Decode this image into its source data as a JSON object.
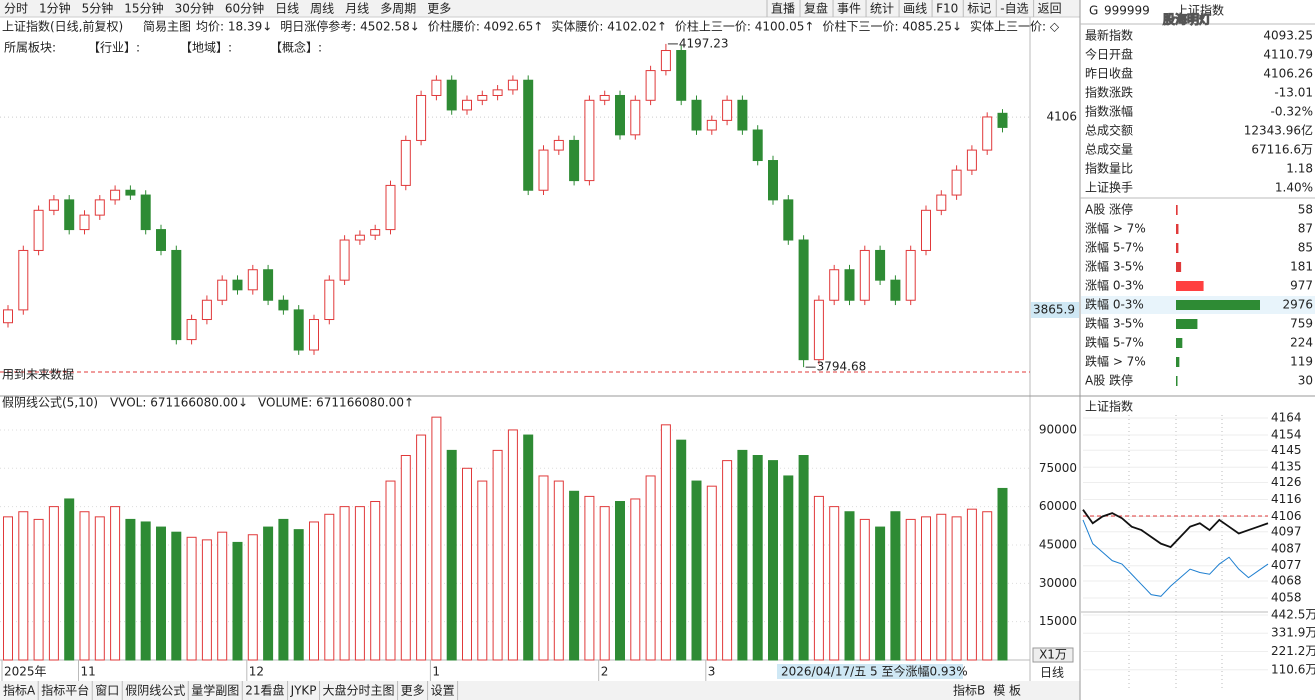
{
  "toolbar": {
    "left": [
      "分时",
      "1分钟",
      "5分钟",
      "15分钟",
      "30分钟",
      "60分钟",
      "日线",
      "周线",
      "月线",
      "多周期",
      "更多"
    ],
    "active": "日线",
    "right": [
      "直播",
      "复盘",
      "事件",
      "统计",
      "画线",
      "F10",
      "标记",
      "-自选",
      "返回"
    ]
  },
  "header": {
    "mode": "简易主图",
    "items": [
      "均价: 18.39↓",
      "明日涨停参考: 4502.58↓",
      "价柱腰价: 4092.65↑",
      "实体腰价: 4102.02↑",
      "价柱上三一价: 4100.05↑",
      "价柱下三一价: 4085.25↓",
      "实体上三一价: ◇"
    ]
  },
  "sector_line": [
    "所属板块:",
    "【行业】:",
    "【地域】:",
    "【概念】:"
  ],
  "future_note": "用到未来数据",
  "date_status": "2026/04/17/五 5 至今涨幅0.93%",
  "chart_data": [
    {
      "type": "candlestick",
      "title": "上证指数(日线,前复权)",
      "categories": [
        "2025年",
        null,
        null,
        null,
        null,
        "11",
        null,
        null,
        null,
        null,
        null,
        null,
        null,
        null,
        null,
        null,
        "12",
        null,
        null,
        null,
        null,
        null,
        null,
        null,
        null,
        null,
        null,
        null,
        "1",
        null,
        null,
        null,
        null,
        null,
        null,
        null,
        null,
        null,
        null,
        "2",
        null,
        null,
        null,
        null,
        null,
        null,
        "3",
        null,
        null,
        null,
        null,
        null,
        null,
        null,
        null,
        null,
        null,
        null,
        null,
        null,
        null,
        null,
        null,
        null,
        null,
        null
      ],
      "open": [
        3850,
        3866,
        3940,
        3990,
        4003,
        3966,
        3984,
        4003,
        4015,
        4009,
        3966,
        3940,
        3829,
        3854,
        3878,
        3903,
        3891,
        3916,
        3878,
        3866,
        3816,
        3854,
        3903,
        3953,
        3959,
        3966,
        4021,
        4077,
        4133,
        4152,
        4115,
        4127,
        4133,
        4140,
        4152,
        4015,
        4065,
        4077,
        4027,
        4127,
        4133,
        4084,
        4127,
        4164,
        4189,
        4127,
        4090,
        4102,
        4127,
        4090,
        4052,
        4003,
        3953,
        3804,
        3878,
        3916,
        3878,
        3940,
        3903,
        3878,
        3940,
        3990,
        4009,
        4040,
        4065,
        4110.79
      ],
      "high": [
        3872,
        3946,
        3996,
        4009,
        4009,
        3990,
        4009,
        4021,
        4021,
        4015,
        3972,
        3946,
        3860,
        3884,
        3909,
        3909,
        3922,
        3922,
        3884,
        3872,
        3860,
        3909,
        3959,
        3965,
        3972,
        4027,
        4083,
        4139,
        4158,
        4158,
        4133,
        4139,
        4146,
        4158,
        4158,
        4071,
        4083,
        4083,
        4133,
        4139,
        4139,
        4133,
        4170,
        4197.23,
        4195,
        4133,
        4108,
        4133,
        4133,
        4096,
        4058,
        4009,
        3959,
        3884,
        3922,
        3922,
        3946,
        3946,
        3909,
        3946,
        3996,
        4015,
        4046,
        4071,
        4112,
        4116
      ],
      "low": [
        3844,
        3860,
        3934,
        3984,
        3960,
        3960,
        3978,
        3997,
        4003,
        3960,
        3934,
        3823,
        3823,
        3848,
        3872,
        3885,
        3885,
        3872,
        3860,
        3810,
        3810,
        3848,
        3897,
        3947,
        3953,
        3960,
        4015,
        4071,
        4127,
        4109,
        4109,
        4121,
        4127,
        4134,
        4009,
        4009,
        4059,
        4021,
        4021,
        4121,
        4078,
        4078,
        4121,
        4158,
        4121,
        4084,
        4084,
        4096,
        4084,
        4046,
        3997,
        3947,
        3794.68,
        3798,
        3872,
        3872,
        3872,
        3897,
        3872,
        3872,
        3934,
        3984,
        4003,
        4034,
        4059,
        4087
      ],
      "close": [
        3866,
        3940,
        3990,
        4003,
        3966,
        3984,
        4003,
        4015,
        4009,
        3966,
        3940,
        3829,
        3854,
        3878,
        3903,
        3891,
        3916,
        3878,
        3866,
        3816,
        3854,
        3903,
        3953,
        3959,
        3966,
        4021,
        4077,
        4133,
        4152,
        4115,
        4127,
        4133,
        4140,
        4152,
        4015,
        4065,
        4077,
        4027,
        4127,
        4133,
        4084,
        4127,
        4164,
        4189,
        4127,
        4090,
        4102,
        4127,
        4090,
        4052,
        4003,
        3953,
        3804,
        3878,
        3916,
        3878,
        3940,
        3903,
        3878,
        3940,
        3990,
        4009,
        4040,
        4065,
        4106.26,
        4093.25
      ],
      "ylim": [
        3760,
        4227
      ],
      "yticks": [
        4106
      ],
      "cursor_value": 3865.9,
      "annotations": [
        4197.23,
        3794.68
      ],
      "up_color": "#e0393a",
      "down_color": "#2e8b34"
    },
    {
      "type": "bar",
      "title": "假阴线公式(5,10)",
      "indicators": [
        {
          "text": "VVOL: 671166080.00↓",
          "color": "#333333"
        },
        {
          "text": "VOLUME: 671166080.00↑",
          "color": "#1e7fd0"
        }
      ],
      "values": [
        56000,
        58000,
        55000,
        60000,
        63000,
        58000,
        56000,
        60000,
        55000,
        54000,
        52000,
        50000,
        48000,
        47000,
        50000,
        46000,
        49000,
        52000,
        55000,
        51000,
        54000,
        57000,
        60000,
        60000,
        62000,
        70000,
        80000,
        88000,
        95000,
        82000,
        75000,
        70000,
        82000,
        90000,
        88000,
        72000,
        70000,
        66000,
        64000,
        60000,
        62000,
        63000,
        72000,
        92000,
        86000,
        70000,
        68000,
        78000,
        82000,
        80000,
        78000,
        72000,
        80000,
        64000,
        60000,
        58000,
        55000,
        52000,
        58000,
        55000,
        56000,
        57000,
        56000,
        59000,
        58000,
        67116.6
      ],
      "ylim": [
        0,
        97800
      ],
      "yticks": [
        15000,
        30000,
        45000,
        60000,
        75000,
        90000
      ],
      "unit": "X1万"
    },
    {
      "type": "line",
      "title": "上证指数",
      "series": [
        {
          "color": "#111111",
          "values": [
            4110,
            4102,
            4106,
            4108,
            4105,
            4100,
            4098,
            4094,
            4090,
            4088,
            4094,
            4100,
            4102,
            4098,
            4104,
            4100,
            4096,
            4098,
            4100,
            4102
          ]
        },
        {
          "color": "#1e7fd0",
          "values": [
            4104,
            4090,
            4085,
            4080,
            4078,
            4072,
            4066,
            4060,
            4059,
            4065,
            4070,
            4075,
            4073,
            4072,
            4078,
            4082,
            4075,
            4070,
            4074,
            4078
          ]
        }
      ],
      "ylim": [
        4058,
        4164
      ],
      "yticks": [
        4164,
        4154,
        4145,
        4135,
        4126,
        4116,
        4106,
        4097,
        4087,
        4077,
        4068,
        4058
      ],
      "y2lim": [
        0,
        442.5
      ],
      "y2ticks": [
        {
          "value": 442.5,
          "label": "442.5万"
        },
        {
          "value": 331.9,
          "label": "331.9万"
        },
        {
          "value": 221.2,
          "label": "221.2万"
        },
        {
          "value": 110.6,
          "label": "110.6万"
        }
      ],
      "up_color": "#e0393a",
      "down_color": "#2e8b34"
    }
  ],
  "quote": {
    "prefix": "G",
    "code": "999999",
    "name": "上证指数",
    "watermark": "股海明灯",
    "rows": [
      {
        "label": "最新指数",
        "value": "4093.25",
        "color": "#1a9a2a"
      },
      {
        "label": "今日开盘",
        "value": "4110.79",
        "color": "#e0393a"
      },
      {
        "label": "昨日收盘",
        "value": "4106.26",
        "color": "#222222"
      },
      {
        "label": "指数涨跌",
        "value": "-13.01",
        "color": "#1a9a2a"
      },
      {
        "label": "指数涨幅",
        "value": "-0.32%",
        "color": "#1a9a2a"
      },
      {
        "label": "总成交额",
        "value": "12343.96亿",
        "color": "#222222"
      },
      {
        "label": "总成交量",
        "value": "67116.6万",
        "color": "#222222"
      },
      {
        "label": "指数量比",
        "value": "1.18",
        "color": "#e0393a"
      },
      {
        "label": "上证换手",
        "value": "1.40%",
        "color": "#222222"
      }
    ]
  },
  "breadth": [
    {
      "label": "A股 涨停",
      "value": 58,
      "color": "#e0393a"
    },
    {
      "label": "涨幅 > 7%",
      "value": 87,
      "color": "#e0393a"
    },
    {
      "label": "涨幅 5-7%",
      "value": 85,
      "color": "#e0393a"
    },
    {
      "label": "涨幅 3-5%",
      "value": 181,
      "color": "#e0393a"
    },
    {
      "label": "涨幅 0-3%",
      "value": 977,
      "color": "#ff4040"
    },
    {
      "label": "跌幅 0-3%",
      "value": 2976,
      "color": "#2e8b34"
    },
    {
      "label": "跌幅 3-5%",
      "value": 759,
      "color": "#2e8b34"
    },
    {
      "label": "跌幅 5-7%",
      "value": 224,
      "color": "#2e8b34"
    },
    {
      "label": "跌幅 > 7%",
      "value": 119,
      "color": "#2e8b34"
    },
    {
      "label": "A股 跌停",
      "value": 30,
      "color": "#2e8b34"
    }
  ],
  "bottom_tabs": {
    "left": [
      "指标A",
      "指标平台",
      "窗口",
      "假阴线公式",
      "量学副图",
      "21看盘",
      "JYKP",
      "大盘分时主图",
      "更多",
      "设置"
    ],
    "active": "假阴线公式",
    "right": [
      "指标B",
      "模 板"
    ],
    "period": "日线"
  }
}
